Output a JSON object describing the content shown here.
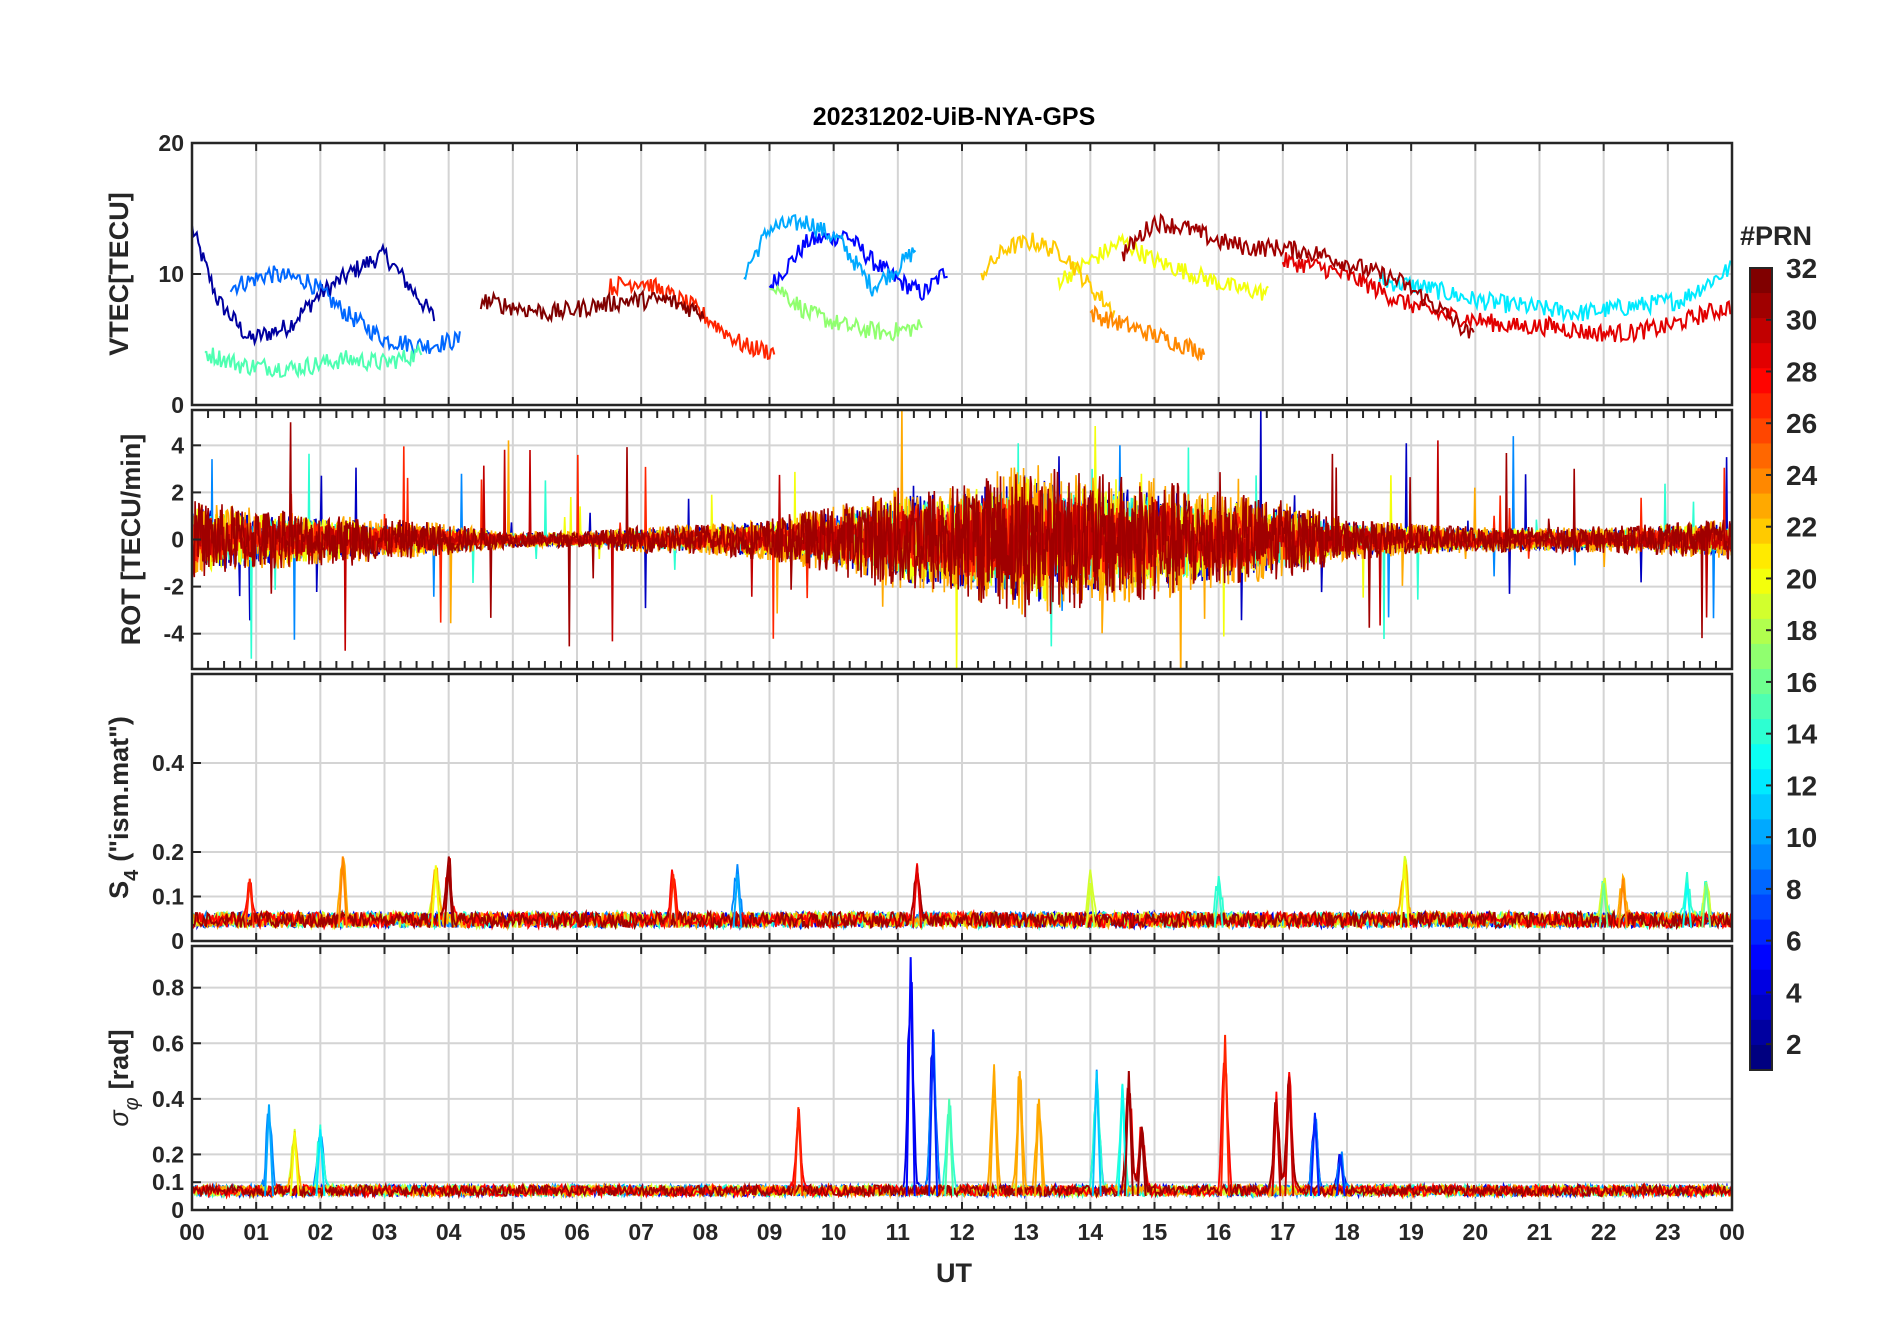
{
  "chart_data": {
    "type": "line",
    "title": "20231202-UiB-NYA-GPS",
    "xlabel": "UT",
    "x_ticks": [
      "00",
      "01",
      "02",
      "03",
      "04",
      "05",
      "06",
      "07",
      "08",
      "09",
      "10",
      "11",
      "12",
      "13",
      "14",
      "15",
      "16",
      "17",
      "18",
      "19",
      "20",
      "21",
      "22",
      "23",
      "00"
    ],
    "xlim": [
      0,
      24
    ],
    "colorbar": {
      "label": "#PRN",
      "range": [
        1,
        32
      ],
      "ticks": [
        "2",
        "4",
        "6",
        "8",
        "10",
        "12",
        "14",
        "16",
        "18",
        "20",
        "22",
        "24",
        "26",
        "28",
        "30",
        "32"
      ],
      "colormap": "jet"
    },
    "panels": [
      {
        "id": "vtec",
        "ylabel": "VTEC[TECU]",
        "ylim": [
          0,
          20
        ],
        "y_ticks": [
          {
            "v": 0,
            "t": "0"
          },
          {
            "v": 10,
            "t": "10"
          },
          {
            "v": 20,
            "t": "20"
          }
        ],
        "series": [
          {
            "name": "PRN 2",
            "values": [
              [
                0.0,
                13.5
              ],
              [
                0.4,
                8.0
              ],
              [
                0.9,
                5.0
              ],
              [
                1.5,
                6.0
              ],
              [
                2.0,
                8.5
              ],
              [
                2.6,
                10.5
              ],
              [
                3.0,
                11.5
              ],
              [
                3.4,
                9.0
              ],
              [
                3.8,
                6.5
              ]
            ]
          },
          {
            "name": "PRN 5",
            "values": [
              [
                9.0,
                9.0
              ],
              [
                9.6,
                12.5
              ],
              [
                10.2,
                13.0
              ],
              [
                10.6,
                11.0
              ],
              [
                11.0,
                9.5
              ],
              [
                11.4,
                8.5
              ],
              [
                11.8,
                10.5
              ]
            ]
          },
          {
            "name": "PRN 8",
            "values": [
              [
                0.6,
                9.0
              ],
              [
                1.2,
                10.0
              ],
              [
                1.8,
                9.5
              ],
              [
                2.4,
                7.0
              ],
              [
                3.0,
                5.0
              ],
              [
                3.6,
                4.5
              ],
              [
                4.2,
                5.0
              ]
            ]
          },
          {
            "name": "PRN 10",
            "values": [
              [
                8.6,
                10.0
              ],
              [
                9.0,
                13.5
              ],
              [
                9.6,
                14.0
              ],
              [
                10.1,
                12.5
              ],
              [
                10.6,
                9.0
              ],
              [
                11.0,
                10.5
              ],
              [
                11.3,
                12.0
              ]
            ]
          },
          {
            "name": "PRN 12",
            "values": [
              [
                18.5,
                9.5
              ],
              [
                19.2,
                9.0
              ],
              [
                20.0,
                8.0
              ],
              [
                20.8,
                7.5
              ],
              [
                21.6,
                7.0
              ],
              [
                22.4,
                7.5
              ],
              [
                23.2,
                8.0
              ],
              [
                24.0,
                10.5
              ]
            ]
          },
          {
            "name": "PRN 15",
            "values": [
              [
                0.2,
                4.0
              ],
              [
                0.8,
                3.0
              ],
              [
                1.6,
                2.8
              ],
              [
                2.4,
                3.5
              ],
              [
                3.0,
                3.2
              ],
              [
                3.6,
                4.0
              ]
            ]
          },
          {
            "name": "PRN 17",
            "values": [
              [
                9.0,
                9.5
              ],
              [
                9.6,
                7.0
              ],
              [
                10.2,
                6.0
              ],
              [
                10.8,
                5.5
              ],
              [
                11.4,
                6.0
              ]
            ]
          },
          {
            "name": "PRN 20",
            "values": [
              [
                13.5,
                9.5
              ],
              [
                14.0,
                11.0
              ],
              [
                14.5,
                12.5
              ],
              [
                15.0,
                11.0
              ],
              [
                15.6,
                10.0
              ],
              [
                16.2,
                9.0
              ],
              [
                16.8,
                8.5
              ]
            ]
          },
          {
            "name": "PRN 22",
            "values": [
              [
                12.3,
                10.0
              ],
              [
                12.7,
                12.0
              ],
              [
                13.1,
                12.5
              ],
              [
                13.6,
                11.5
              ],
              [
                14.0,
                9.0
              ],
              [
                14.4,
                7.0
              ]
            ]
          },
          {
            "name": "PRN 24",
            "values": [
              [
                14.0,
                7.0
              ],
              [
                14.6,
                6.0
              ],
              [
                15.2,
                5.0
              ],
              [
                15.8,
                4.0
              ]
            ]
          },
          {
            "name": "PRN 27",
            "values": [
              [
                6.5,
                9.0
              ],
              [
                7.0,
                9.5
              ],
              [
                7.4,
                8.5
              ],
              [
                7.8,
                7.5
              ],
              [
                8.2,
                6.0
              ],
              [
                8.6,
                4.5
              ],
              [
                9.1,
                4.0
              ]
            ]
          },
          {
            "name": "PRN 29",
            "values": [
              [
                17.0,
                11.0
              ],
              [
                17.6,
                10.5
              ],
              [
                18.2,
                9.5
              ],
              [
                18.8,
                8.0
              ],
              [
                19.4,
                7.0
              ],
              [
                20.0,
                6.5
              ],
              [
                20.6,
                6.0
              ],
              [
                21.2,
                6.0
              ],
              [
                21.8,
                5.5
              ],
              [
                22.4,
                5.5
              ],
              [
                23.0,
                6.0
              ],
              [
                23.6,
                7.0
              ],
              [
                24.0,
                7.5
              ]
            ]
          },
          {
            "name": "PRN 31",
            "values": [
              [
                14.5,
                11.5
              ],
              [
                15.0,
                14.0
              ],
              [
                15.5,
                13.5
              ],
              [
                16.0,
                12.5
              ],
              [
                16.5,
                12.0
              ],
              [
                17.0,
                12.0
              ],
              [
                17.6,
                11.5
              ],
              [
                18.2,
                10.5
              ],
              [
                18.8,
                9.5
              ],
              [
                19.4,
                7.5
              ],
              [
                20.0,
                5.0
              ]
            ]
          },
          {
            "name": "PRN 32",
            "values": [
              [
                4.5,
                8.0
              ],
              [
                5.0,
                7.5
              ],
              [
                5.6,
                7.0
              ],
              [
                6.2,
                7.5
              ],
              [
                6.8,
                8.0
              ],
              [
                7.4,
                8.0
              ],
              [
                8.0,
                7.0
              ]
            ]
          }
        ]
      },
      {
        "id": "rot",
        "ylabel": "ROT [TECU/min]",
        "ylim": [
          -5.5,
          5.5
        ],
        "y_ticks": [
          {
            "v": -4,
            "t": "-4"
          },
          {
            "v": -2,
            "t": "-2"
          },
          {
            "v": 0,
            "t": "0"
          },
          {
            "v": 2,
            "t": "2"
          },
          {
            "v": 4,
            "t": "4"
          }
        ],
        "activity_profile": [
          [
            0,
            1.5
          ],
          [
            1,
            1.2
          ],
          [
            2,
            1.0
          ],
          [
            3,
            0.8
          ],
          [
            4,
            0.6
          ],
          [
            5,
            0.3
          ],
          [
            6,
            0.3
          ],
          [
            7,
            0.5
          ],
          [
            8,
            0.6
          ],
          [
            9,
            0.8
          ],
          [
            10,
            1.3
          ],
          [
            11,
            2.0
          ],
          [
            12,
            2.2
          ],
          [
            13,
            3.0
          ],
          [
            14,
            2.5
          ],
          [
            15,
            2.4
          ],
          [
            16,
            1.8
          ],
          [
            17,
            1.5
          ],
          [
            18,
            0.8
          ],
          [
            19,
            0.6
          ],
          [
            20,
            0.5
          ],
          [
            21,
            0.5
          ],
          [
            22,
            0.5
          ],
          [
            23,
            0.6
          ],
          [
            24,
            0.8
          ]
        ]
      },
      {
        "id": "s4",
        "ylabel": "S4 (\"ism.mat\")",
        "ylabel_main": "S",
        "ylabel_sub": "4",
        "ylabel_rest": "(\"ism.mat\")",
        "ylim": [
          0,
          0.6
        ],
        "y_ticks": [
          {
            "v": 0,
            "t": "0"
          },
          {
            "v": 0.1,
            "t": "0.1"
          },
          {
            "v": 0.2,
            "t": "0.2"
          },
          {
            "v": 0.4,
            "t": "0.4"
          }
        ],
        "peaks": [
          [
            0.9,
            0.14,
            27
          ],
          [
            2.35,
            0.19,
            24
          ],
          [
            3.8,
            0.17,
            20
          ],
          [
            4.0,
            0.17,
            31
          ],
          [
            7.5,
            0.15,
            27
          ],
          [
            8.5,
            0.15,
            10
          ],
          [
            11.3,
            0.17,
            29
          ],
          [
            14.0,
            0.13,
            19
          ],
          [
            16.0,
            0.13,
            14
          ],
          [
            18.9,
            0.18,
            20
          ],
          [
            22.0,
            0.13,
            16
          ],
          [
            22.3,
            0.14,
            24
          ],
          [
            23.3,
            0.13,
            13
          ],
          [
            23.6,
            0.13,
            16
          ]
        ]
      },
      {
        "id": "sigphi",
        "ylabel": "σφ[rad]",
        "ylabel_main": "σ",
        "ylabel_sub": "φ",
        "ylabel_rest": "[rad]",
        "ylim": [
          0,
          0.95
        ],
        "y_ticks": [
          {
            "v": 0,
            "t": "0"
          },
          {
            "v": 0.1,
            "t": "0.1"
          },
          {
            "v": 0.2,
            "t": "0.2"
          },
          {
            "v": 0.4,
            "t": "0.4"
          },
          {
            "v": 0.6,
            "t": "0.6"
          },
          {
            "v": 0.8,
            "t": "0.8"
          }
        ],
        "peaks": [
          [
            1.2,
            0.38,
            10
          ],
          [
            1.6,
            0.28,
            20
          ],
          [
            2.0,
            0.29,
            12
          ],
          [
            9.45,
            0.37,
            27
          ],
          [
            11.2,
            0.91,
            5
          ],
          [
            11.55,
            0.65,
            6
          ],
          [
            11.8,
            0.4,
            15
          ],
          [
            12.5,
            0.5,
            23
          ],
          [
            12.9,
            0.5,
            23
          ],
          [
            13.2,
            0.4,
            23
          ],
          [
            14.1,
            0.5,
            11
          ],
          [
            14.5,
            0.45,
            13
          ],
          [
            14.6,
            0.5,
            31
          ],
          [
            14.8,
            0.3,
            31
          ],
          [
            16.1,
            0.63,
            27
          ],
          [
            16.9,
            0.4,
            30
          ],
          [
            17.1,
            0.48,
            30
          ],
          [
            17.5,
            0.35,
            6
          ],
          [
            17.9,
            0.2,
            6
          ]
        ]
      }
    ]
  }
}
